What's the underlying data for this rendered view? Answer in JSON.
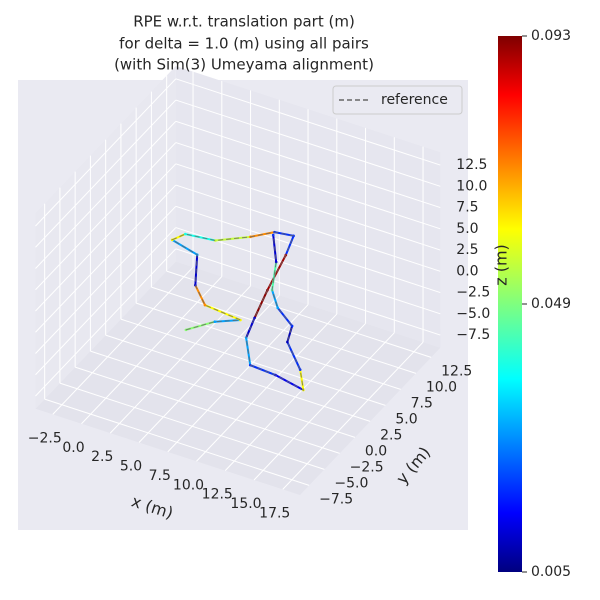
{
  "chart_data": {
    "type": "line3d",
    "title": [
      "RPE w.r.t. translation part (m)",
      "for delta = 1.0 (m) using all pairs",
      "(with Sim(3) Umeyama alignment)"
    ],
    "xlabel": "x (m)",
    "ylabel": "y (m)",
    "zlabel": "z (m)",
    "xlim": [
      -4,
      19
    ],
    "ylim": [
      -9,
      14
    ],
    "zlim": [
      -9,
      14
    ],
    "xticks": [
      {
        "value": -2.5,
        "label": "−2.5"
      },
      {
        "value": 0,
        "label": "0.0"
      },
      2.5,
      {
        "value": 5,
        "label": "5.0"
      },
      7.5,
      {
        "value": 10,
        "label": "10.0"
      },
      12.5,
      {
        "value": 15,
        "label": "15.0"
      },
      17.5
    ],
    "yticks": [
      {
        "value": -7.5,
        "label": "−7.5"
      },
      {
        "value": -5,
        "label": "−5.0"
      },
      {
        "value": -2.5,
        "label": "−2.5"
      },
      {
        "value": 0,
        "label": "0.0"
      },
      2.5,
      {
        "value": 5,
        "label": "5.0"
      },
      7.5,
      {
        "value": 10,
        "label": "10.0"
      },
      12.5
    ],
    "zticks": [
      {
        "value": -7.5,
        "label": "−7.5"
      },
      {
        "value": -5,
        "label": "−5.0"
      },
      {
        "value": -2.5,
        "label": "−2.5"
      },
      {
        "value": 0,
        "label": "0.0"
      },
      2.5,
      {
        "value": 5,
        "label": "5.0"
      },
      7.5,
      {
        "value": 10,
        "label": "10.0"
      },
      12.5
    ],
    "legend": "reference",
    "legend_position": "upper right",
    "reference_color": "#666666",
    "series": [
      {
        "x": [
          6.9,
          8.3,
          9.9,
          6.6,
          4.7,
          2.9,
          0.3,
          0.8,
          3.2,
          5.3,
          6.6,
          8.1,
          8.8,
          9.8,
          10.7,
          11.4,
          13.4,
          15.7,
          18.5,
          17.0,
          14.4,
          13.7,
          11.6,
          10.1,
          8.6,
          6.7
        ],
        "y": [
          -4.9,
          -2.8,
          -1.6,
          -1.2,
          0.8,
          4.5,
          5.3,
          6.5,
          6.9,
          8.7,
          10.2,
          10.5,
          7.9,
          3.0,
          -0.8,
          -3.5,
          -6.6,
          -6.8,
          -7.5,
          -5.2,
          -2.4,
          -0.3,
          1.3,
          3.2,
          6.7,
          9.8
        ],
        "z": [
          2,
          2,
          2,
          2,
          2,
          2,
          2,
          2,
          2,
          2,
          2,
          2,
          2,
          2,
          2,
          2,
          2,
          2,
          2,
          2,
          2,
          2,
          2,
          2,
          2,
          2
        ],
        "errors": [
          0.05,
          0.03,
          0.06,
          0.07,
          0.012,
          0.03,
          0.06,
          0.04,
          0.055,
          0.07,
          0.02,
          0.02,
          0.09,
          0.092,
          0.012,
          0.03,
          0.02,
          0.015,
          0.06,
          0.02,
          0.01,
          0.02,
          0.03,
          0.045,
          0.012,
          0.02
        ]
      }
    ],
    "colormap": "jet",
    "colorbar_lim": [
      0.005,
      0.093
    ],
    "colorbar_ticks": [
      0.005,
      0.049,
      0.093
    ]
  }
}
